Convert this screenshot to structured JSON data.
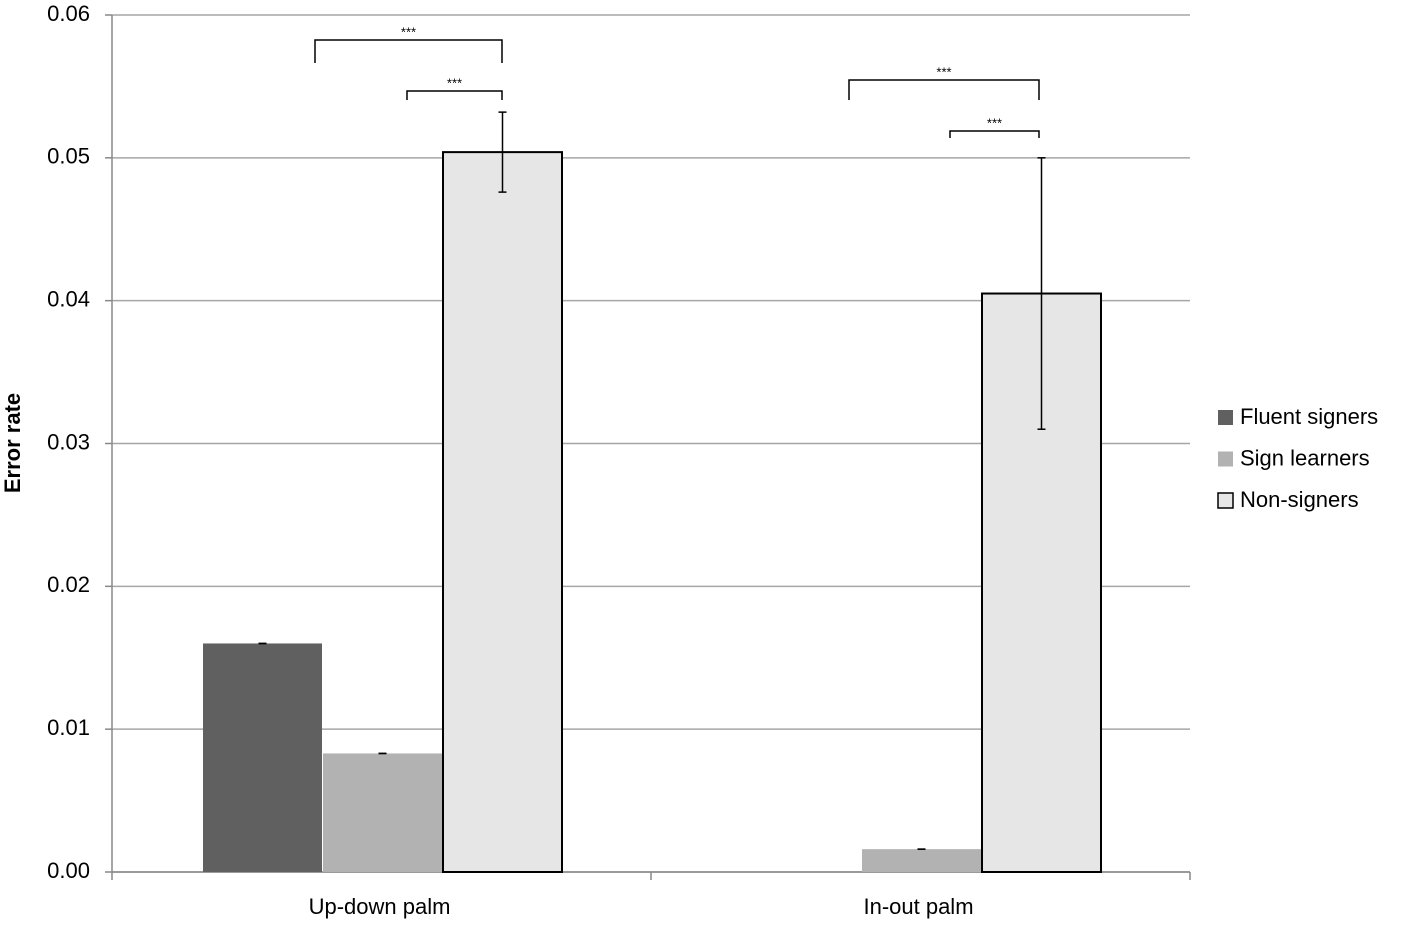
{
  "chart_data": {
    "type": "bar",
    "y_label": "Error rate",
    "categories": [
      "Up-down palm",
      "In-out palm"
    ],
    "series": [
      {
        "name": "Fluent signers",
        "color": "#606060",
        "values": [
          0.016,
          0
        ],
        "errors": [
          0,
          null
        ]
      },
      {
        "name": "Sign learners",
        "color": "#b2b2b2",
        "values": [
          0.0083,
          0.0016
        ],
        "errors": [
          0,
          0
        ]
      },
      {
        "name": "Non-signers",
        "color": "#e6e6e6",
        "values": [
          0.0504,
          0.0405
        ],
        "errors": [
          0.0028,
          0.0095
        ]
      }
    ],
    "ylim": [
      0,
      0.06
    ],
    "yticks": [
      {
        "value": 0,
        "label": "0.00"
      },
      {
        "value": 0.01,
        "label": "0.01"
      },
      {
        "value": 0.02,
        "label": "0.02"
      },
      {
        "value": 0.03,
        "label": "0.03"
      },
      {
        "value": 0.04,
        "label": "0.04"
      },
      {
        "value": 0.05,
        "label": "0.05"
      },
      {
        "value": 0.06,
        "label": "0.06"
      }
    ],
    "grid": true,
    "legend": "right",
    "annotations": [
      "***",
      "***",
      "***",
      "***"
    ]
  }
}
